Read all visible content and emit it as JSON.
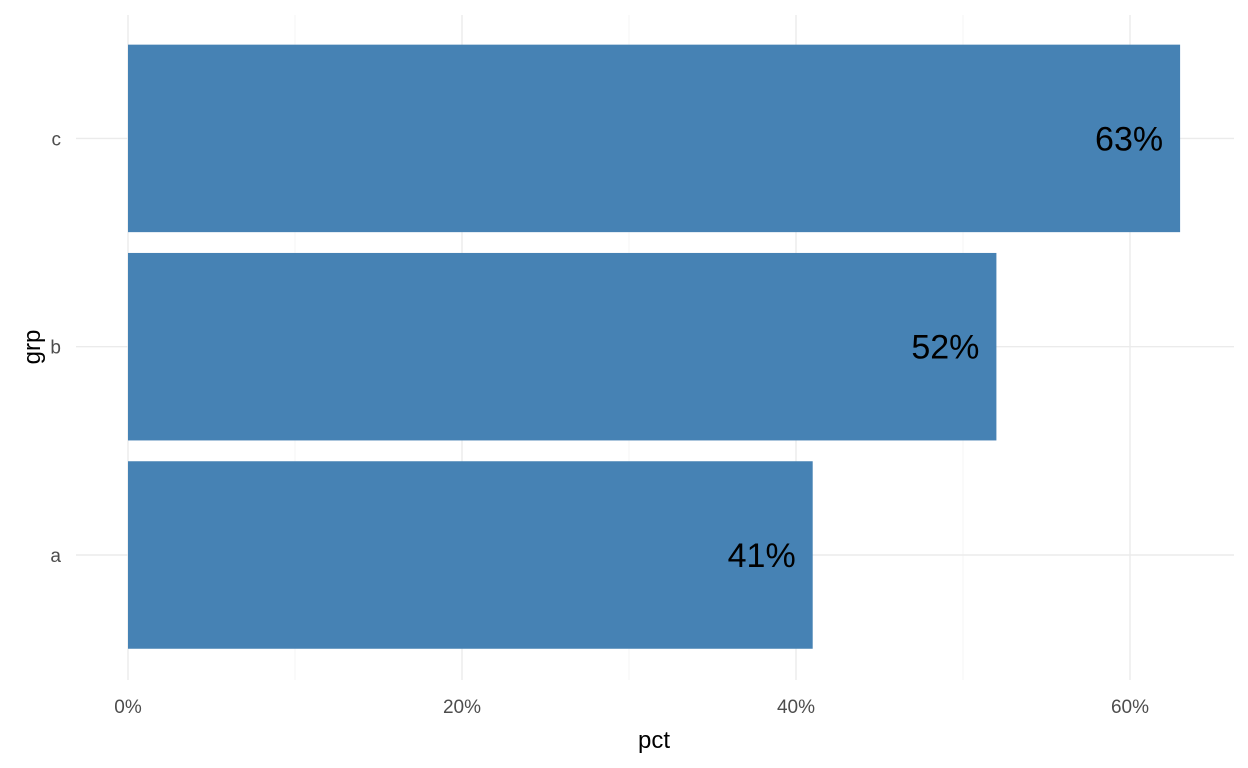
{
  "chart_data": {
    "type": "bar",
    "orientation": "horizontal",
    "categories": [
      "a",
      "b",
      "c"
    ],
    "values": [
      41,
      52,
      63
    ],
    "value_labels": [
      "41%",
      "52%",
      "63%"
    ],
    "xlabel": "pct",
    "ylabel": "grp",
    "xlim": [
      0,
      66
    ],
    "x_ticks": [
      0,
      20,
      40,
      60
    ],
    "x_tick_labels": [
      "0%",
      "20%",
      "40%",
      "60%"
    ],
    "grid": true,
    "legend": "none",
    "bar_color": "#4682B4"
  }
}
